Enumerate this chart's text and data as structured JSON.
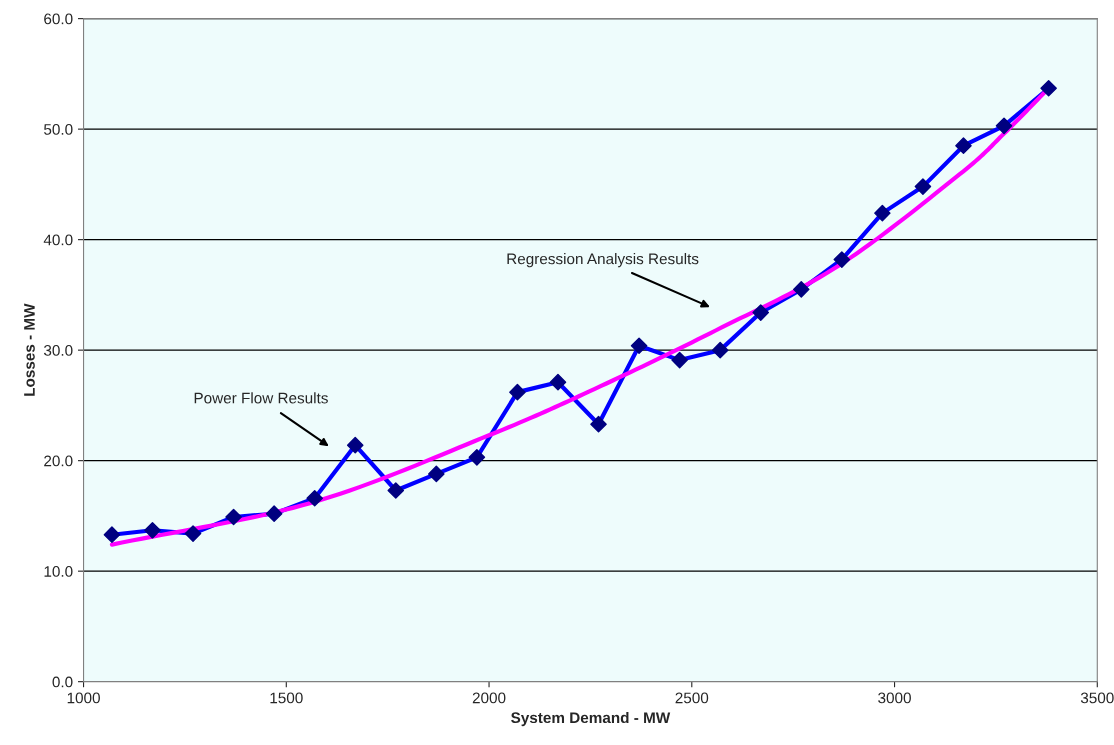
{
  "chart_data": {
    "type": "line",
    "xlabel": "System Demand - MW",
    "ylabel": "Losses - MW",
    "xlim": [
      1000,
      3500
    ],
    "xticks": [
      1000,
      1500,
      2000,
      2500,
      3000,
      3500
    ],
    "ylim": [
      0,
      60
    ],
    "yticks": [
      {
        "value": 0,
        "label": "0.0"
      },
      {
        "value": 10,
        "label": "10.0"
      },
      {
        "value": 20,
        "label": "20.0"
      },
      {
        "value": 30,
        "label": "30.0"
      },
      {
        "value": 40,
        "label": "40.0"
      },
      {
        "value": 50,
        "label": "50.0"
      },
      {
        "value": 60,
        "label": "60.0"
      }
    ],
    "grid": "y",
    "legend": false,
    "series": [
      {
        "color": "#0000ff",
        "marker": "diamond",
        "colors": [
          "#000080",
          "#000080",
          "#000080",
          "#000080",
          "#000080",
          "#000080",
          "#000080",
          "#000080",
          "#000080",
          "#000080",
          "#000080",
          "#000080",
          "#000080",
          "#000080",
          "#000080",
          "#000080",
          "#000080",
          "#000080",
          "#000080",
          "#000080",
          "#000080",
          "#000080",
          "#000080",
          "#000080"
        ],
        "x": [
          1070,
          1170,
          1270,
          1370,
          1470,
          1570,
          1670,
          1770,
          1870,
          1970,
          2070,
          2170,
          2270,
          2370,
          2470,
          2570,
          2670,
          2770,
          2870,
          2970,
          3070,
          3170,
          3270,
          3380
        ],
        "values": [
          13.3,
          13.7,
          13.4,
          14.9,
          15.2,
          16.6,
          21.4,
          17.3,
          18.8,
          20.3,
          26.2,
          27.1,
          23.3,
          30.4,
          29.1,
          30.0,
          33.4,
          35.5,
          38.2,
          42.4,
          44.8,
          48.5,
          50.3,
          53.7
        ]
      },
      {
        "color": "#ff00ff",
        "marker": "none",
        "x": [
          1070,
          1563,
          2000,
          2261,
          2560,
          2860,
          3160,
          3270,
          3380
        ],
        "values": [
          12.4,
          16.2,
          22.3,
          26.5,
          31.8,
          37.6,
          45.9,
          49.6,
          53.7
        ]
      }
    ],
    "annotations": [
      "Power Flow Results",
      "Regression Analysis Results"
    ]
  }
}
